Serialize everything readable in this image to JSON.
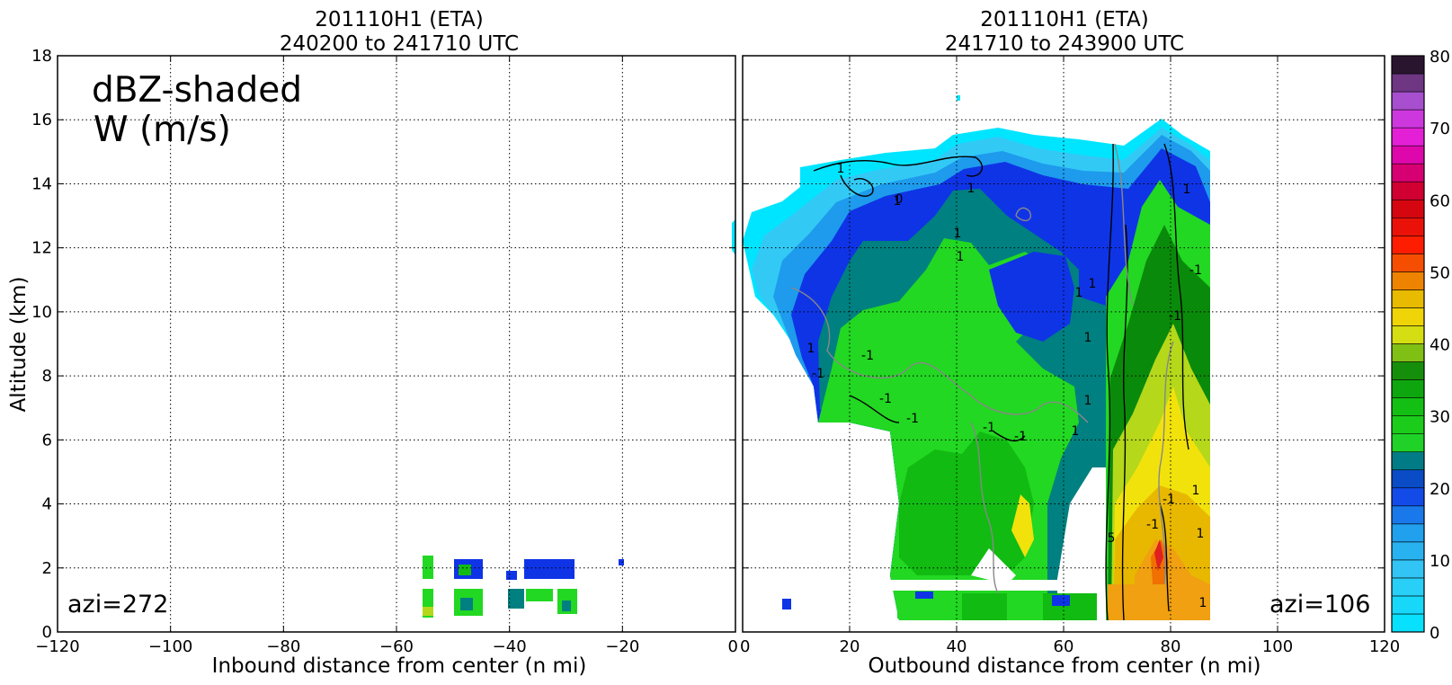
{
  "colors": {
    "cyan": "#00e5ff",
    "lightblue1": "#33c9f5",
    "lightblue2": "#1e9bec",
    "blue1": "#1a5ef0",
    "blue2": "#0f34e6",
    "teal": "#008080",
    "green_light": "#22d822",
    "green_mid": "#11bb11",
    "green_dark": "#0a8a0a",
    "yellowgreen": "#b5d81a",
    "yellow": "#f2e20c",
    "gold": "#e8b800",
    "orange_light": "#f0a010",
    "orange": "#f07000",
    "red": "#e02020",
    "contour_black": "#000000",
    "contour_gray": "#888888"
  },
  "chart_data": [
    {
      "type": "heatmap",
      "title": [
        "201110H1 (ETA)",
        "240200 to 241710 UTC"
      ],
      "xlabel": "Inbound distance from center (n mi)",
      "ylabel": "Altitude (km)",
      "xlim": [
        -120,
        0
      ],
      "ylim": [
        0,
        18
      ],
      "xticks": [
        "−120",
        "−100",
        "−80",
        "−60",
        "−40",
        "−20",
        "0"
      ],
      "yticks": [
        "0",
        "2",
        "4",
        "6",
        "8",
        "10",
        "12",
        "14",
        "16",
        "18"
      ],
      "annotations": [
        "dBZ-shaded",
        "W (m/s)",
        "azi=272"
      ],
      "grid": true
    },
    {
      "type": "heatmap",
      "title": [
        "201110H1 (ETA)",
        "241710 to 243900 UTC"
      ],
      "xlabel": "Outbound distance from center (n mi)",
      "xlim": [
        0,
        120
      ],
      "ylim": [
        0,
        18
      ],
      "xticks": [
        "0",
        "20",
        "40",
        "60",
        "80",
        "100",
        "120"
      ],
      "annotations": [
        "azi=106"
      ],
      "contour_labels": [
        "1",
        "1",
        "0",
        "1",
        "1",
        "1",
        "1",
        "1",
        "1",
        "-1",
        "-1",
        "1",
        "1",
        "-1",
        "-1",
        "-1",
        "-1",
        "-1",
        "1",
        "5",
        "1",
        "-1",
        "-1",
        "1",
        "1",
        "1",
        "-1"
      ],
      "grid": true
    }
  ],
  "colorbar": {
    "ticks": [
      "0",
      "10",
      "20",
      "30",
      "40",
      "50",
      "60",
      "70",
      "80"
    ],
    "range": [
      0,
      80
    ],
    "levels": 32
  }
}
